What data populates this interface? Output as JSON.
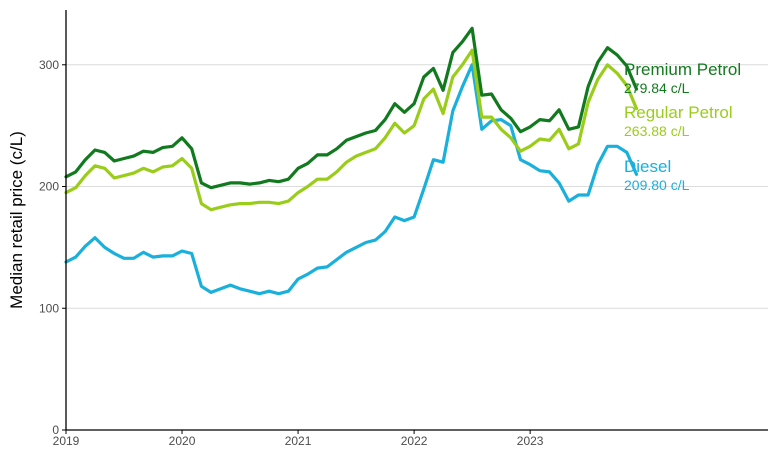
{
  "chart_data": {
    "type": "line",
    "ylabel": "Median retail price (c/L)",
    "xlabel": "",
    "ylim": [
      0,
      345
    ],
    "y_ticks": [
      0,
      100,
      200,
      300
    ],
    "y_tick_labels": [
      "0",
      "100",
      "200",
      "300"
    ],
    "x_ticks": [
      2019,
      2020,
      2021,
      2022,
      2023
    ],
    "x_tick_labels": [
      "2019",
      "2020",
      "2021",
      "2022",
      "2023"
    ],
    "grid": "horizontal",
    "legend": "direct labels at right end of lines",
    "x": [
      "2019-01",
      "2019-02",
      "2019-03",
      "2019-04",
      "2019-05",
      "2019-06",
      "2019-07",
      "2019-08",
      "2019-09",
      "2019-10",
      "2019-11",
      "2019-12",
      "2020-01",
      "2020-02",
      "2020-03",
      "2020-04",
      "2020-05",
      "2020-06",
      "2020-07",
      "2020-08",
      "2020-09",
      "2020-10",
      "2020-11",
      "2020-12",
      "2021-01",
      "2021-02",
      "2021-03",
      "2021-04",
      "2021-05",
      "2021-06",
      "2021-07",
      "2021-08",
      "2021-09",
      "2021-10",
      "2021-11",
      "2021-12",
      "2022-01",
      "2022-02",
      "2022-03",
      "2022-04",
      "2022-05",
      "2022-06",
      "2022-07",
      "2022-08",
      "2022-09",
      "2022-10",
      "2022-11",
      "2022-12",
      "2023-01",
      "2023-02",
      "2023-03",
      "2023-04",
      "2023-05",
      "2023-06",
      "2023-07",
      "2023-08",
      "2023-09",
      "2023-10",
      "2023-11",
      "2023-12"
    ],
    "series": [
      {
        "name": "Premium Petrol",
        "value_label": "279.84 c/L",
        "color": "#127a1e",
        "values": [
          208,
          212,
          222,
          230,
          228,
          221,
          223,
          225,
          229,
          228,
          232,
          233,
          240,
          231,
          203,
          199,
          201,
          203,
          203,
          202,
          203,
          205,
          204,
          206,
          215,
          219,
          226,
          226,
          231,
          238,
          241,
          244,
          246,
          255,
          268,
          261,
          268,
          290,
          297,
          279,
          310,
          319,
          330,
          275,
          276,
          263,
          256,
          245,
          249,
          255,
          254,
          263,
          247,
          249,
          282,
          302,
          314,
          308,
          299,
          280
        ]
      },
      {
        "name": "Regular Petrol",
        "value_label": "263.88 c/L",
        "color": "#9acd1a",
        "values": [
          195,
          199,
          209,
          217,
          215,
          207,
          209,
          211,
          215,
          212,
          216,
          217,
          223,
          215,
          186,
          181,
          183,
          185,
          186,
          186,
          187,
          187,
          186,
          188,
          195,
          200,
          206,
          206,
          212,
          220,
          225,
          228,
          231,
          240,
          252,
          244,
          250,
          272,
          280,
          260,
          290,
          300,
          312,
          257,
          257,
          247,
          240,
          229,
          233,
          239,
          238,
          247,
          231,
          235,
          269,
          288,
          300,
          293,
          283,
          264
        ]
      },
      {
        "name": "Diesel",
        "value_label": "209.80 c/L",
        "color": "#1ab0dc",
        "values": [
          138,
          142,
          151,
          158,
          150,
          145,
          141,
          141,
          146,
          142,
          143,
          143,
          147,
          145,
          118,
          113,
          116,
          119,
          116,
          114,
          112,
          114,
          112,
          114,
          124,
          128,
          133,
          134,
          140,
          146,
          150,
          154,
          156,
          163,
          175,
          172,
          175,
          198,
          222,
          220,
          262,
          282,
          300,
          247,
          254,
          255,
          250,
          222,
          218,
          213,
          212,
          203,
          188,
          193,
          193,
          218,
          233,
          233,
          228,
          210
        ]
      }
    ]
  },
  "colors": {
    "axis": "#000000",
    "grid": "#dcdcdc",
    "tick_text": "#4d4d4d"
  }
}
